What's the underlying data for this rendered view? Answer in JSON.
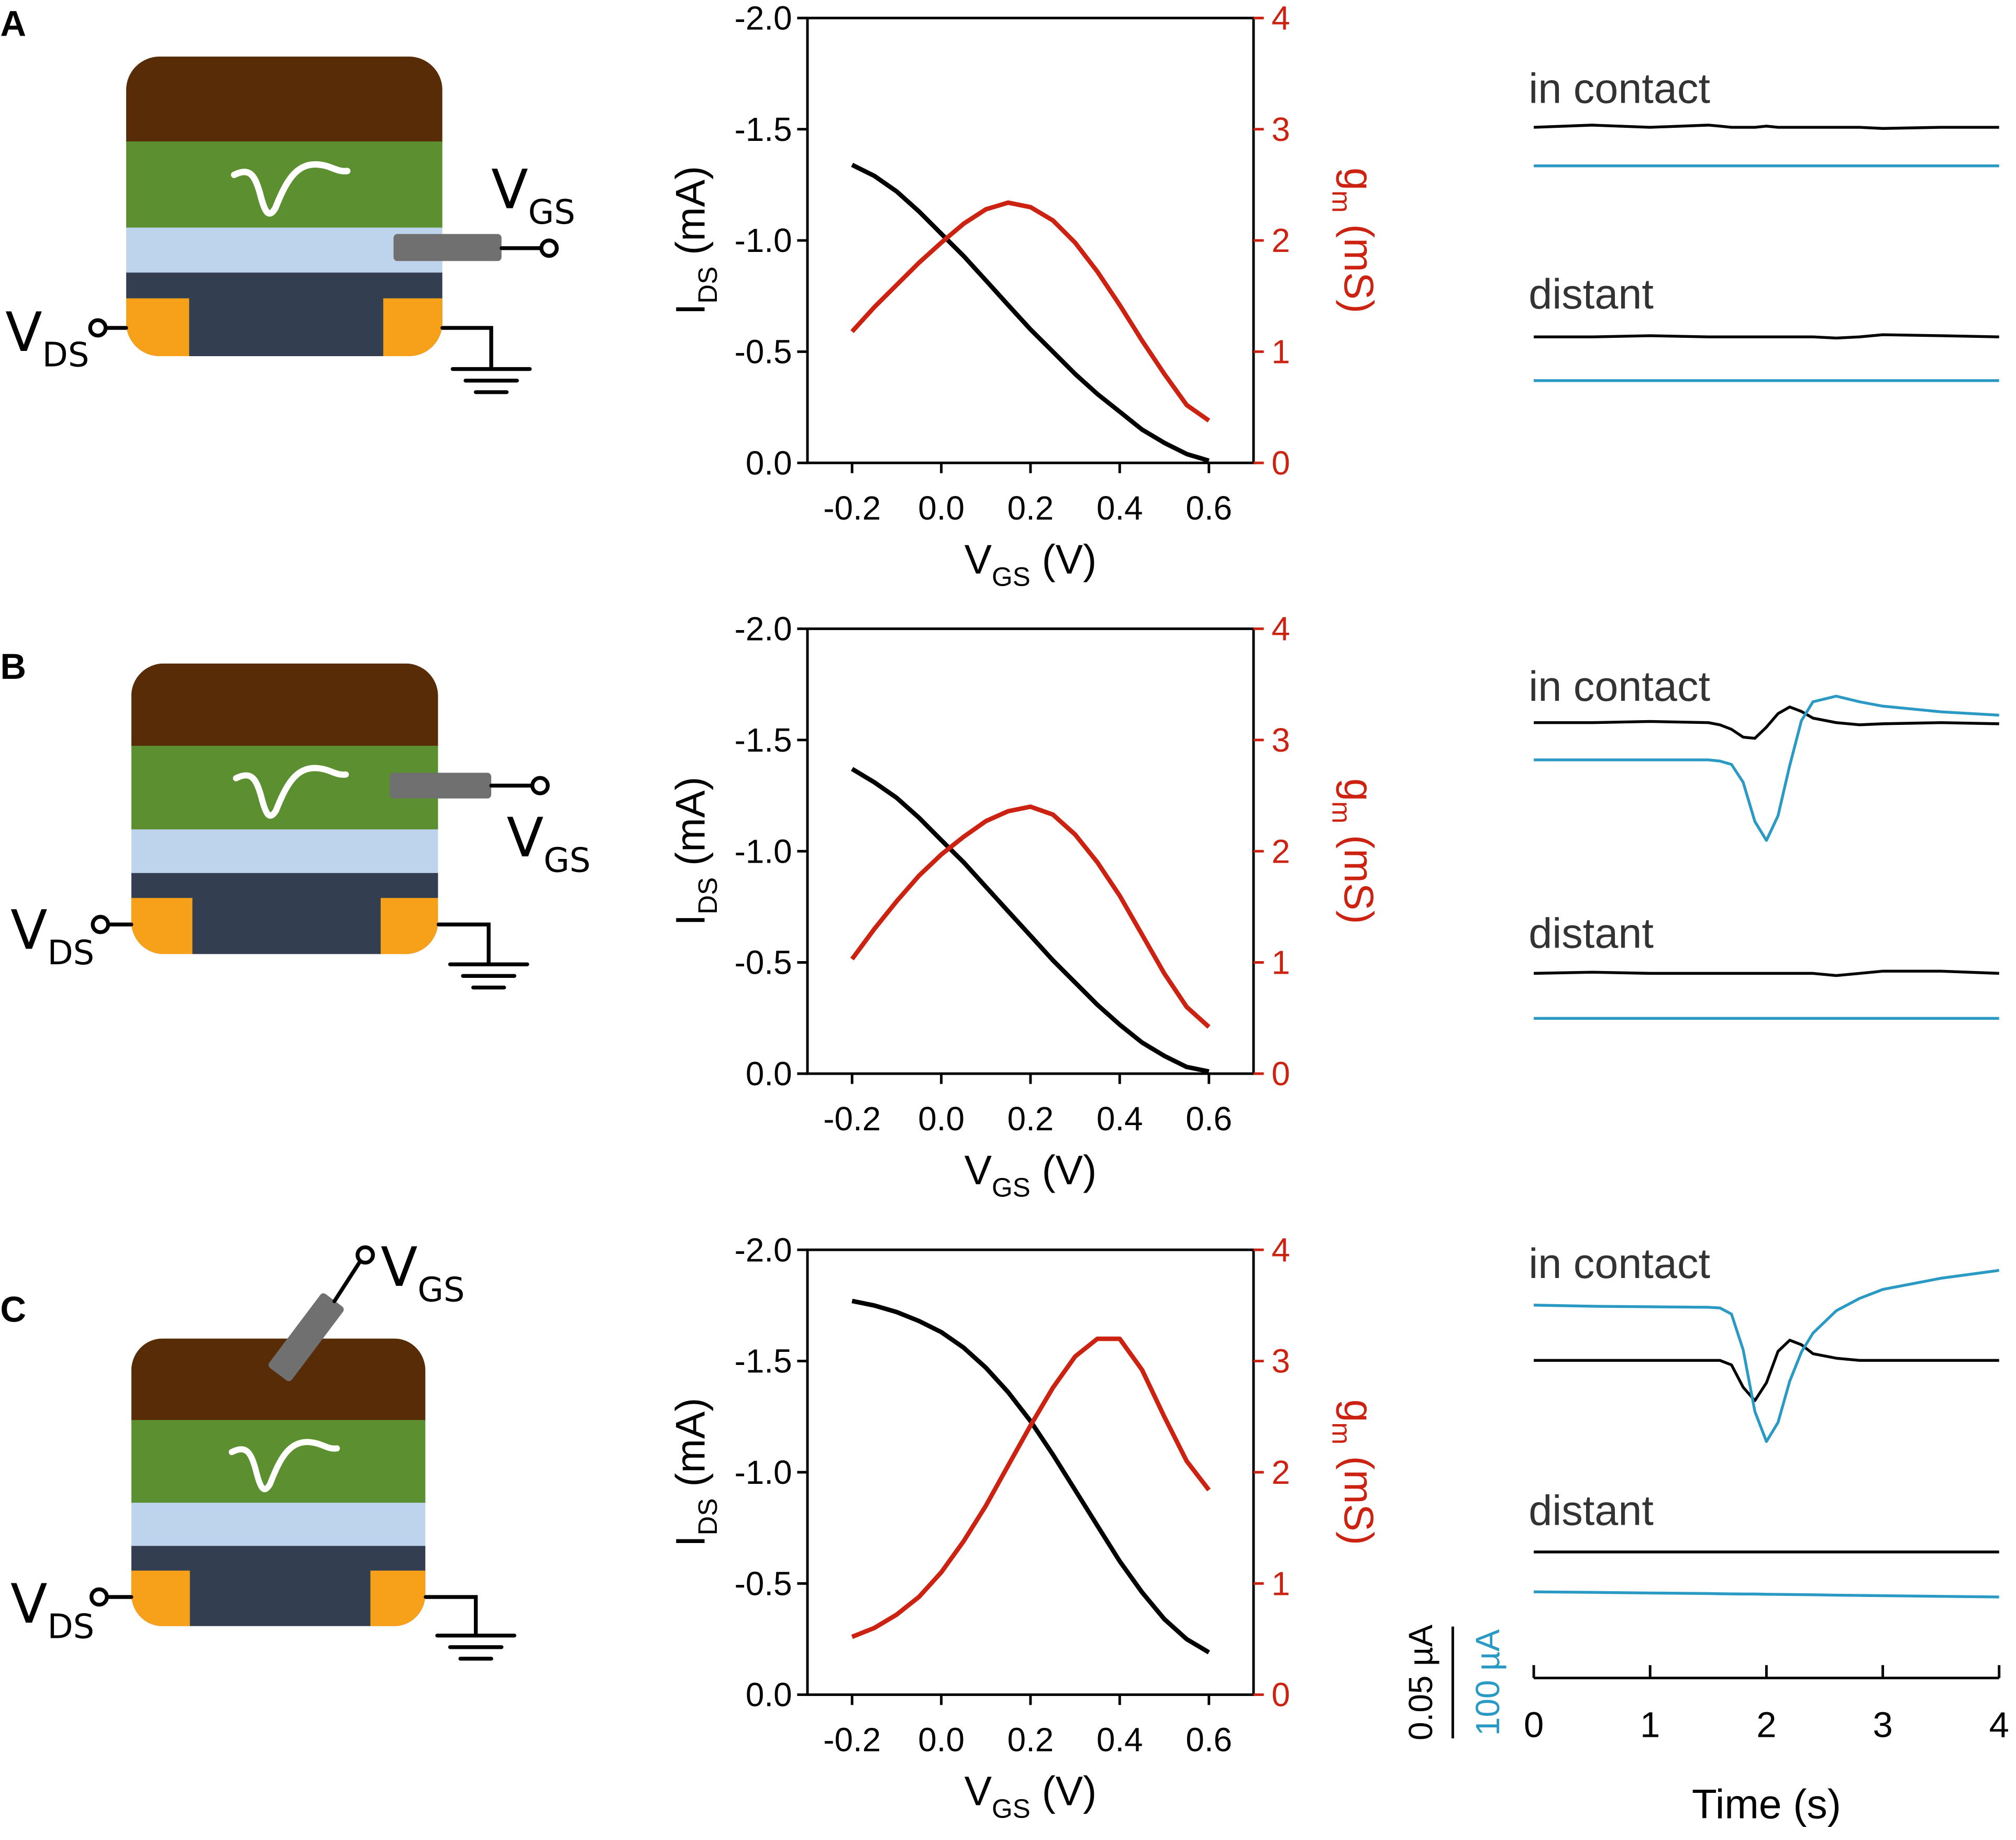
{
  "panels": [
    {
      "letter": "A",
      "vgs": [
        "V",
        "GS"
      ],
      "vds": [
        "V",
        "DS"
      ]
    },
    {
      "letter": "B",
      "vgs": [
        "V",
        "GS"
      ],
      "vds": [
        "V",
        "DS"
      ]
    },
    {
      "letter": "C",
      "vgs": [
        "V",
        "GS"
      ],
      "vds": [
        "V",
        "DS"
      ]
    }
  ],
  "chart_data": [
    {
      "type": "line",
      "xlabel": [
        "V",
        "GS",
        " (V)"
      ],
      "ylabel": [
        "I",
        "DS",
        " (mA)"
      ],
      "y2label": [
        "g",
        "m",
        " (mS)"
      ],
      "xlim": [
        -0.3,
        0.7
      ],
      "xticks": [
        -0.2,
        {
          "value": 0,
          "label": "0.0"
        },
        0.2,
        0.4,
        0.6
      ],
      "ylim": [
        0,
        -2
      ],
      "yticks": [
        {
          "value": 0,
          "label": "0.0"
        },
        -0.5,
        {
          "value": -1,
          "label": "-1.0"
        },
        -1.5,
        {
          "value": -2,
          "label": "-2.0"
        }
      ],
      "y2lim": [
        0,
        4
      ],
      "y2ticks": [
        0,
        1,
        2,
        3,
        4
      ],
      "x": [
        -0.2,
        -0.15,
        -0.1,
        -0.05,
        0,
        0.05,
        0.1,
        0.15,
        0.2,
        0.25,
        0.3,
        0.35,
        0.4,
        0.45,
        0.5,
        0.55,
        0.6
      ],
      "series": [
        {
          "color": "#000000",
          "values": [
            -1.34,
            -1.29,
            -1.22,
            -1.13,
            -1.03,
            -0.93,
            -0.82,
            -0.71,
            -0.6,
            -0.5,
            -0.4,
            -0.31,
            -0.23,
            -0.15,
            -0.09,
            -0.04,
            -0.01
          ]
        },
        {
          "color": "#cc2211",
          "axis": "y2",
          "values": [
            1.18,
            1.4,
            1.6,
            1.8,
            1.98,
            2.15,
            2.28,
            2.34,
            2.3,
            2.18,
            1.98,
            1.72,
            1.42,
            1.1,
            0.8,
            0.52,
            0.38
          ]
        }
      ]
    },
    {
      "type": "traces",
      "xlim": [
        0,
        4
      ],
      "x": [
        0,
        0.5,
        1,
        1.5,
        1.6,
        1.7,
        1.8,
        1.9,
        2,
        2.1,
        2.2,
        2.3,
        2.4,
        2.6,
        2.8,
        3,
        3.5,
        4
      ],
      "groups": [
        {
          "label": "in contact",
          "series": [
            {
              "color": "#000000",
              "values": [
                0,
                0.001,
                0,
                0.001,
                0.0005,
                0,
                0,
                0,
                0.0005,
                0,
                0,
                0,
                0,
                0,
                0,
                -0.0005,
                0,
                0
              ]
            },
            {
              "color": "#2a9ac4",
              "values": [
                0,
                0,
                0,
                0,
                0,
                0,
                0,
                0,
                0,
                0,
                0,
                0,
                0,
                0,
                0,
                0,
                0,
                0
              ]
            }
          ]
        },
        {
          "label": "distant",
          "series": [
            {
              "color": "#000000",
              "values": [
                0,
                0,
                0.0005,
                0,
                0,
                0,
                0,
                0,
                0,
                0,
                0,
                0,
                0,
                -0.0005,
                0,
                0.001,
                0.0005,
                0
              ]
            },
            {
              "color": "#2a9ac4",
              "values": [
                0,
                0,
                0,
                0,
                0,
                0,
                0,
                0,
                0,
                0,
                0,
                0,
                0,
                0,
                0,
                0,
                0,
                0
              ]
            }
          ]
        }
      ]
    },
    {
      "type": "line",
      "xlabel": [
        "V",
        "GS",
        " (V)"
      ],
      "ylabel": [
        "I",
        "DS",
        " (mA)"
      ],
      "y2label": [
        "g",
        "m",
        " (mS)"
      ],
      "xlim": [
        -0.3,
        0.7
      ],
      "xticks": [
        -0.2,
        {
          "value": 0,
          "label": "0.0"
        },
        0.2,
        0.4,
        0.6
      ],
      "ylim": [
        0,
        -2
      ],
      "yticks": [
        {
          "value": 0,
          "label": "0.0"
        },
        -0.5,
        {
          "value": -1,
          "label": "-1.0"
        },
        -1.5,
        {
          "value": -2,
          "label": "-2.0"
        }
      ],
      "y2lim": [
        0,
        4
      ],
      "y2ticks": [
        0,
        1,
        2,
        3,
        4
      ],
      "x": [
        -0.2,
        -0.15,
        -0.1,
        -0.05,
        0,
        0.05,
        0.1,
        0.15,
        0.2,
        0.25,
        0.3,
        0.35,
        0.4,
        0.45,
        0.5,
        0.55,
        0.6
      ],
      "series": [
        {
          "color": "#000000",
          "values": [
            -1.37,
            -1.31,
            -1.24,
            -1.15,
            -1.05,
            -0.95,
            -0.84,
            -0.73,
            -0.62,
            -0.51,
            -0.41,
            -0.31,
            -0.22,
            -0.14,
            -0.08,
            -0.03,
            -0.01
          ]
        },
        {
          "color": "#cc2211",
          "axis": "y2",
          "values": [
            1.03,
            1.3,
            1.55,
            1.78,
            1.97,
            2.13,
            2.27,
            2.36,
            2.4,
            2.33,
            2.15,
            1.9,
            1.6,
            1.25,
            0.9,
            0.6,
            0.42
          ]
        }
      ]
    },
    {
      "type": "traces",
      "xlim": [
        0,
        4
      ],
      "x": [
        0,
        0.5,
        1,
        1.5,
        1.6,
        1.7,
        1.8,
        1.9,
        2,
        2.1,
        2.2,
        2.3,
        2.4,
        2.6,
        2.8,
        3,
        3.5,
        4
      ],
      "groups": [
        {
          "label": "in contact",
          "series": [
            {
              "color": "#000000",
              "values": [
                0,
                0,
                0.0005,
                0,
                -0.001,
                -0.003,
                -0.0065,
                -0.007,
                -0.002,
                0.004,
                0.007,
                0.005,
                0.002,
                0,
                -0.001,
                -0.0005,
                0,
                -0.0005
              ]
            },
            {
              "color": "#2a9ac4",
              "values": [
                0,
                0,
                0,
                0,
                -1,
                -4,
                -20,
                -55,
                -72,
                -50,
                -5,
                35,
                52,
                57,
                52,
                48,
                43,
                40
              ]
            }
          ]
        },
        {
          "label": "distant",
          "series": [
            {
              "color": "#000000",
              "values": [
                0,
                0.0005,
                0,
                0,
                0,
                0,
                0,
                0,
                0,
                0,
                0,
                0,
                0,
                -0.001,
                0,
                0.001,
                0.001,
                0
              ]
            },
            {
              "color": "#2a9ac4",
              "values": [
                0,
                0,
                0,
                0,
                0,
                0,
                0,
                0,
                0,
                0,
                0,
                0,
                0,
                0,
                0,
                0,
                0,
                0
              ]
            }
          ]
        }
      ]
    },
    {
      "type": "line",
      "xlabel": [
        "V",
        "GS",
        " (V)"
      ],
      "ylabel": [
        "I",
        "DS",
        " (mA)"
      ],
      "y2label": [
        "g",
        "m",
        " (mS)"
      ],
      "xlim": [
        -0.3,
        0.7
      ],
      "xticks": [
        -0.2,
        {
          "value": 0,
          "label": "0.0"
        },
        0.2,
        0.4,
        0.6
      ],
      "ylim": [
        0,
        -2
      ],
      "yticks": [
        {
          "value": 0,
          "label": "0.0"
        },
        -0.5,
        {
          "value": -1,
          "label": "-1.0"
        },
        -1.5,
        {
          "value": -2,
          "label": "-2.0"
        }
      ],
      "y2lim": [
        0,
        4
      ],
      "y2ticks": [
        0,
        1,
        2,
        3,
        4
      ],
      "x": [
        -0.2,
        -0.15,
        -0.1,
        -0.05,
        0,
        0.05,
        0.1,
        0.15,
        0.2,
        0.25,
        0.3,
        0.35,
        0.4,
        0.45,
        0.5,
        0.55,
        0.6
      ],
      "series": [
        {
          "color": "#000000",
          "values": [
            -1.77,
            -1.75,
            -1.72,
            -1.68,
            -1.63,
            -1.56,
            -1.47,
            -1.36,
            -1.23,
            -1.08,
            -0.92,
            -0.76,
            -0.6,
            -0.46,
            -0.34,
            -0.25,
            -0.19
          ]
        },
        {
          "color": "#cc2211",
          "axis": "y2",
          "values": [
            0.52,
            0.6,
            0.72,
            0.88,
            1.1,
            1.38,
            1.7,
            2.06,
            2.42,
            2.76,
            3.04,
            3.2,
            3.2,
            2.92,
            2.5,
            2.1,
            1.84
          ]
        }
      ]
    },
    {
      "type": "traces",
      "xlim": [
        0,
        4
      ],
      "xticks": [
        0,
        1,
        2,
        3,
        4
      ],
      "xlabel": "Time (s)",
      "x": [
        0,
        0.5,
        1,
        1.5,
        1.6,
        1.7,
        1.8,
        1.9,
        2,
        2.1,
        2.2,
        2.3,
        2.4,
        2.6,
        2.8,
        3,
        3.5,
        4
      ],
      "scalebar": [
        {
          "label": "0.05 µA",
          "value": 0.05,
          "color": "#000000"
        },
        {
          "label": "100 µA",
          "value": 100,
          "color": "#2a9ac4"
        }
      ],
      "groups": [
        {
          "label": "in contact",
          "series": [
            {
              "color": "#000000",
              "values": [
                0,
                0,
                0,
                0,
                0,
                -0.002,
                -0.012,
                -0.018,
                -0.01,
                0.004,
                0.009,
                0.007,
                0.003,
                0.001,
                0,
                0,
                0,
                0
              ]
            },
            {
              "color": "#2a9ac4",
              "values": [
                0,
                -1,
                -1.5,
                -2,
                -2.5,
                -8,
                -40,
                -95,
                -122,
                -105,
                -68,
                -42,
                -25,
                -5,
                6,
                14,
                24,
                31
              ]
            }
          ]
        },
        {
          "label": "distant",
          "series": [
            {
              "color": "#000000",
              "values": [
                0,
                0,
                0,
                0,
                0,
                0,
                0,
                0,
                0,
                0,
                0,
                0,
                0,
                0,
                0,
                0,
                0,
                0
              ]
            },
            {
              "color": "#2a9ac4",
              "values": [
                0,
                -0.5,
                -1,
                -1.5,
                -1.7,
                -1.8,
                -2,
                -2,
                -2.2,
                -2.3,
                -2.4,
                -2.5,
                -2.6,
                -3,
                -3.2,
                -3.5,
                -4,
                -4.6
              ]
            }
          ]
        }
      ]
    }
  ]
}
